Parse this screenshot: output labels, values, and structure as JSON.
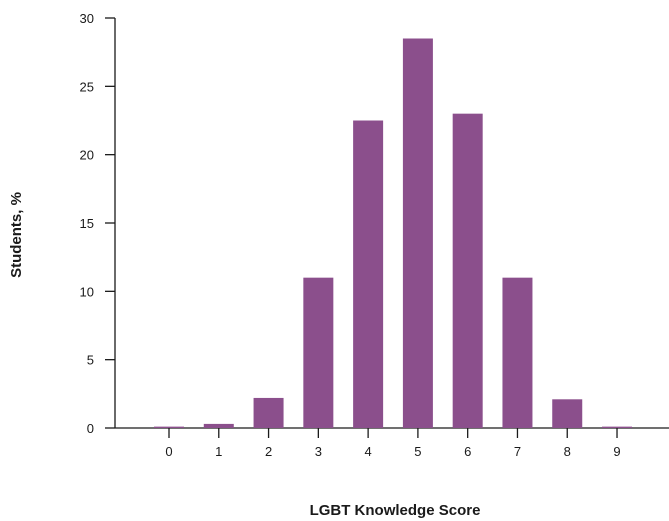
{
  "chart_data": {
    "type": "bar",
    "title": "",
    "xlabel": "LGBT Knowledge Score",
    "ylabel": "Students, %",
    "categories": [
      "0",
      "1",
      "2",
      "3",
      "4",
      "5",
      "6",
      "7",
      "8",
      "9"
    ],
    "values": [
      0.1,
      0.3,
      2.2,
      11.0,
      22.5,
      28.5,
      23.0,
      11.0,
      2.1,
      0.1
    ],
    "ylim": [
      0,
      30
    ],
    "yticks": [
      "0",
      "5",
      "10",
      "15",
      "20",
      "25",
      "30"
    ],
    "grid": false,
    "bar_color": "#8b4f8c",
    "axis_color": "#1a1a1a"
  }
}
